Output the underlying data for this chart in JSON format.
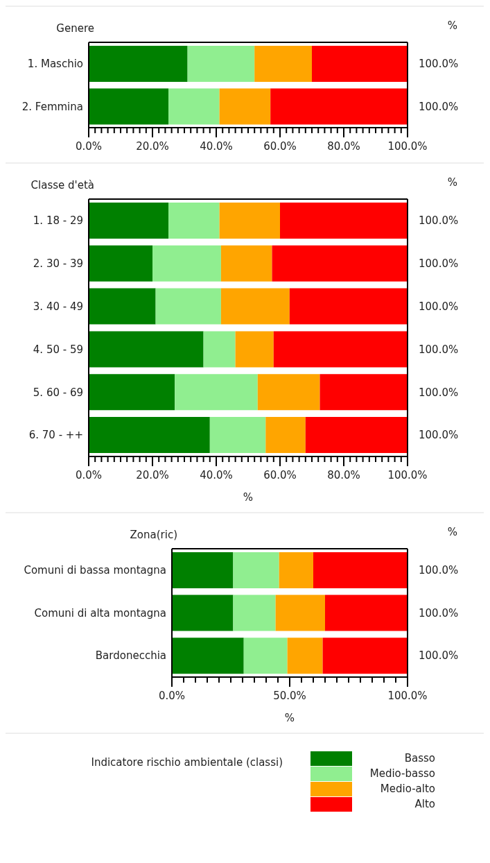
{
  "chart_data": [
    {
      "type": "bar",
      "orientation": "horizontal",
      "stacked": true,
      "ylabel": "Genere",
      "categories": [
        "1. Maschio",
        "2. Femmina"
      ],
      "series": [
        {
          "color": "#008000",
          "values": [
            31,
            25
          ]
        },
        {
          "color": "#90ee90",
          "values": [
            21,
            16
          ]
        },
        {
          "color": "#ffa500",
          "values": [
            18,
            16
          ]
        },
        {
          "color": "#ff0000",
          "values": [
            30,
            43
          ]
        }
      ],
      "xlim": [
        0,
        100
      ],
      "xticks": [
        {
          "value": 0,
          "label": "0.0%"
        },
        {
          "value": 2,
          "label": null
        },
        {
          "value": 4,
          "label": null
        },
        {
          "value": 6,
          "label": null
        },
        {
          "value": 8,
          "label": null
        },
        {
          "value": 10,
          "label": null
        },
        {
          "value": 12,
          "label": null
        },
        {
          "value": 14,
          "label": null
        },
        {
          "value": 16,
          "label": null
        },
        {
          "value": 18,
          "label": null
        },
        {
          "value": 20,
          "label": "20.0%"
        },
        {
          "value": 22,
          "label": null
        },
        {
          "value": 24,
          "label": null
        },
        {
          "value": 26,
          "label": null
        },
        {
          "value": 28,
          "label": null
        },
        {
          "value": 30,
          "label": null
        },
        {
          "value": 32,
          "label": null
        },
        {
          "value": 34,
          "label": null
        },
        {
          "value": 36,
          "label": null
        },
        {
          "value": 38,
          "label": null
        },
        {
          "value": 40,
          "label": "40.0%"
        },
        {
          "value": 42,
          "label": null
        },
        {
          "value": 44,
          "label": null
        },
        {
          "value": 46,
          "label": null
        },
        {
          "value": 48,
          "label": null
        },
        {
          "value": 50,
          "label": null
        },
        {
          "value": 52,
          "label": null
        },
        {
          "value": 54,
          "label": null
        },
        {
          "value": 56,
          "label": null
        },
        {
          "value": 58,
          "label": null
        },
        {
          "value": 60,
          "label": "60.0%"
        },
        {
          "value": 62,
          "label": null
        },
        {
          "value": 64,
          "label": null
        },
        {
          "value": 66,
          "label": null
        },
        {
          "value": 68,
          "label": null
        },
        {
          "value": 70,
          "label": null
        },
        {
          "value": 72,
          "label": null
        },
        {
          "value": 74,
          "label": null
        },
        {
          "value": 76,
          "label": null
        },
        {
          "value": 78,
          "label": null
        },
        {
          "value": 80,
          "label": "80.0%"
        },
        {
          "value": 82,
          "label": null
        },
        {
          "value": 84,
          "label": null
        },
        {
          "value": 86,
          "label": null
        },
        {
          "value": 88,
          "label": null
        },
        {
          "value": 90,
          "label": null
        },
        {
          "value": 92,
          "label": null
        },
        {
          "value": 94,
          "label": null
        },
        {
          "value": 96,
          "label": null
        },
        {
          "value": 98,
          "label": null
        },
        {
          "value": 100,
          "label": "100.0%"
        }
      ],
      "totals": [
        "100.0%",
        "100.0%"
      ],
      "annotations": [
        "%"
      ]
    },
    {
      "type": "bar",
      "orientation": "horizontal",
      "stacked": true,
      "ylabel": "Classe d'età",
      "xlabel": "%",
      "categories": [
        "1. 18 - 29",
        "2. 30 - 39",
        "3. 40 - 49",
        "4. 50 - 59",
        "5. 60 - 69",
        "6. 70 - ++"
      ],
      "series": [
        {
          "color": "#008000",
          "values": [
            25,
            20,
            21,
            36,
            27,
            38
          ]
        },
        {
          "color": "#90ee90",
          "values": [
            16,
            21.5,
            20.5,
            10,
            26,
            17.5
          ]
        },
        {
          "color": "#ffa500",
          "values": [
            19,
            16,
            21.5,
            12,
            19.5,
            12.5
          ]
        },
        {
          "color": "#ff0000",
          "values": [
            40,
            42.5,
            37,
            42,
            27.5,
            32
          ]
        }
      ],
      "xlim": [
        0,
        100
      ],
      "xticks": [
        {
          "value": 0,
          "label": "0.0%"
        },
        {
          "value": 2,
          "label": null
        },
        {
          "value": 4,
          "label": null
        },
        {
          "value": 6,
          "label": null
        },
        {
          "value": 8,
          "label": null
        },
        {
          "value": 10,
          "label": null
        },
        {
          "value": 12,
          "label": null
        },
        {
          "value": 14,
          "label": null
        },
        {
          "value": 16,
          "label": null
        },
        {
          "value": 18,
          "label": null
        },
        {
          "value": 20,
          "label": "20.0%"
        },
        {
          "value": 22,
          "label": null
        },
        {
          "value": 24,
          "label": null
        },
        {
          "value": 26,
          "label": null
        },
        {
          "value": 28,
          "label": null
        },
        {
          "value": 30,
          "label": null
        },
        {
          "value": 32,
          "label": null
        },
        {
          "value": 34,
          "label": null
        },
        {
          "value": 36,
          "label": null
        },
        {
          "value": 38,
          "label": null
        },
        {
          "value": 40,
          "label": "40.0%"
        },
        {
          "value": 42,
          "label": null
        },
        {
          "value": 44,
          "label": null
        },
        {
          "value": 46,
          "label": null
        },
        {
          "value": 48,
          "label": null
        },
        {
          "value": 50,
          "label": null
        },
        {
          "value": 52,
          "label": null
        },
        {
          "value": 54,
          "label": null
        },
        {
          "value": 56,
          "label": null
        },
        {
          "value": 58,
          "label": null
        },
        {
          "value": 60,
          "label": "60.0%"
        },
        {
          "value": 62,
          "label": null
        },
        {
          "value": 64,
          "label": null
        },
        {
          "value": 66,
          "label": null
        },
        {
          "value": 68,
          "label": null
        },
        {
          "value": 70,
          "label": null
        },
        {
          "value": 72,
          "label": null
        },
        {
          "value": 74,
          "label": null
        },
        {
          "value": 76,
          "label": null
        },
        {
          "value": 78,
          "label": null
        },
        {
          "value": 80,
          "label": "80.0%"
        },
        {
          "value": 82,
          "label": null
        },
        {
          "value": 84,
          "label": null
        },
        {
          "value": 86,
          "label": null
        },
        {
          "value": 88,
          "label": null
        },
        {
          "value": 90,
          "label": null
        },
        {
          "value": 92,
          "label": null
        },
        {
          "value": 94,
          "label": null
        },
        {
          "value": 96,
          "label": null
        },
        {
          "value": 98,
          "label": null
        },
        {
          "value": 100,
          "label": "100.0%"
        }
      ],
      "totals": [
        "100.0%",
        "100.0%",
        "100.0%",
        "100.0%",
        "100.0%",
        "100.0%"
      ],
      "annotations": [
        "%"
      ]
    },
    {
      "type": "bar",
      "orientation": "horizontal",
      "stacked": true,
      "ylabel": "Zona(ric)",
      "xlabel": "%",
      "categories": [
        "Comuni di bassa montagna",
        "Comuni di alta montagna",
        "Bardonecchia"
      ],
      "series": [
        {
          "name": "Basso",
          "color": "#008000",
          "values": [
            26,
            26,
            30.5
          ]
        },
        {
          "name": "Medio-basso",
          "color": "#90ee90",
          "values": [
            19.5,
            18,
            18.5
          ]
        },
        {
          "name": "Medio-alto",
          "color": "#ffa500",
          "values": [
            14.5,
            21,
            15
          ]
        },
        {
          "name": "Alto",
          "color": "#ff0000",
          "values": [
            40,
            35,
            36
          ]
        }
      ],
      "xlim": [
        0,
        100
      ],
      "xticks": [
        {
          "value": 0,
          "label": "0.0%"
        },
        {
          "value": 5,
          "label": null
        },
        {
          "value": 10,
          "label": null
        },
        {
          "value": 15,
          "label": null
        },
        {
          "value": 20,
          "label": null
        },
        {
          "value": 25,
          "label": null
        },
        {
          "value": 30,
          "label": null
        },
        {
          "value": 35,
          "label": null
        },
        {
          "value": 40,
          "label": null
        },
        {
          "value": 45,
          "label": null
        },
        {
          "value": 50,
          "label": "50.0%"
        },
        {
          "value": 55,
          "label": null
        },
        {
          "value": 60,
          "label": null
        },
        {
          "value": 65,
          "label": null
        },
        {
          "value": 70,
          "label": null
        },
        {
          "value": 75,
          "label": null
        },
        {
          "value": 80,
          "label": null
        },
        {
          "value": 85,
          "label": null
        },
        {
          "value": 90,
          "label": null
        },
        {
          "value": 95,
          "label": null
        },
        {
          "value": 100,
          "label": "100.0%"
        }
      ],
      "totals": [
        "100.0%",
        "100.0%",
        "100.0%"
      ],
      "annotations": [
        "%"
      ],
      "legend": "bottom",
      "legend_title": "Indicatore rischio ambientale (classi)"
    }
  ]
}
